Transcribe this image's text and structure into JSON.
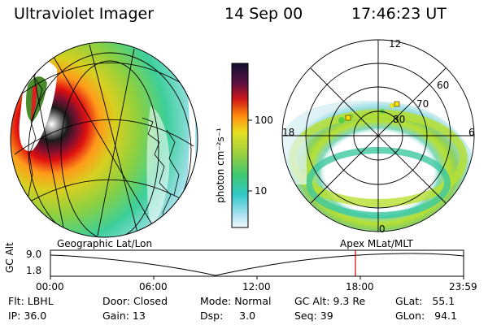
{
  "header": {
    "instrument": "Ultraviolet Imager",
    "date": "14 Sep 00",
    "time": "17:46:23 UT"
  },
  "colorbar": {
    "label": "photon cm⁻²s⁻¹",
    "ticks": [
      "100",
      "10"
    ]
  },
  "polar": {
    "mlt_labels": [
      "12",
      "18",
      "6",
      "0"
    ],
    "mlat_labels": [
      "60",
      "70",
      "80"
    ]
  },
  "panels": {
    "left_caption": "Geographic Lat/Lon",
    "right_caption": "Apex MLat/MLT"
  },
  "timeline": {
    "ylabel": "GC Alt",
    "yticks": [
      "9.0",
      "1.8"
    ],
    "xticks": [
      "00:00",
      "06:00",
      "12:00",
      "18:00",
      "23:59"
    ],
    "marker_time": "17:46"
  },
  "info": {
    "filter": "Flt: LBHL",
    "ip": "IP: 36.0",
    "door": "Door: Closed",
    "gain": "Gain: 13",
    "mode": "Mode: Normal",
    "dsp": "Dsp:     3.0",
    "gc_alt": "GC Alt: 9.3 Re",
    "seq": "Seq: 39",
    "glat": "GLat:   55.1",
    "glon": "GLon:   94.1"
  },
  "colors": {
    "marker": "#d40000",
    "background": "#ffffff"
  }
}
